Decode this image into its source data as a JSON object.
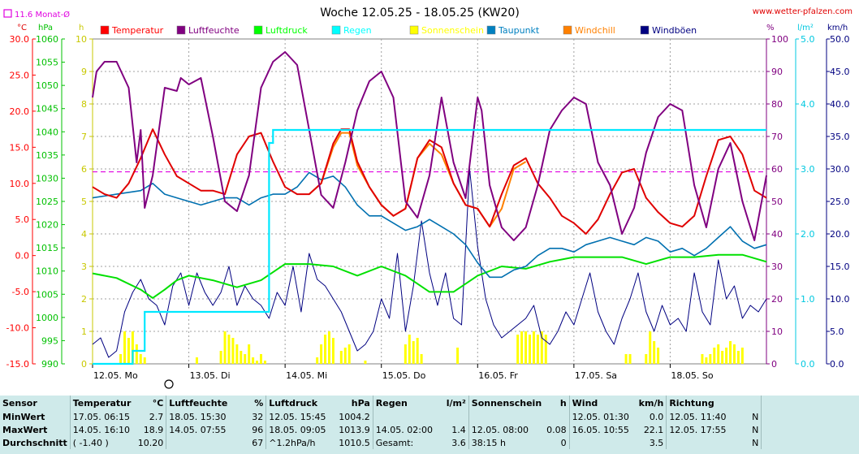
{
  "header": {
    "title": "Woche 12.05.25 - 18.05.25 (KW20)",
    "url": "www.wetter-pfalzen.com",
    "monthavg_label": "11.6 Monat-Ø",
    "unit_celsius": "°C",
    "unit_hpa": "hPa",
    "unit_h": "h",
    "unit_percent": "%",
    "unit_lm2": "l/m²",
    "unit_kmh": "km/h"
  },
  "legend": [
    {
      "label": "Temperatur",
      "color": "#ff0000"
    },
    {
      "label": "Luftfeuchte",
      "color": "#800080"
    },
    {
      "label": "Luftdruck",
      "color": "#00ff00"
    },
    {
      "label": "Regen",
      "color": "#00ffff"
    },
    {
      "label": "Sonnenschein",
      "color": "#ffff00"
    },
    {
      "label": "Taupunkt",
      "color": "#0080c0"
    },
    {
      "label": "Windchill",
      "color": "#ff8000"
    },
    {
      "label": "Windböen",
      "color": "#000080"
    }
  ],
  "colors": {
    "temperature": "#e00000",
    "humidity": "#800080",
    "pressure": "#00e000",
    "rain": "#00e8ff",
    "sunshine": "#ffff00",
    "dewpoint": "#0070b0",
    "windchill": "#ff8000",
    "gusts": "#000080",
    "monthavg": "#e000e0"
  },
  "chart_data": {
    "type": "line",
    "x_start_hours": 0,
    "x_end_hours": 168,
    "day_labels": [
      "12.05. Mo",
      "13.05. Di",
      "14.05. Mi",
      "15.05. Do",
      "16.05. Fr",
      "17.05. Sa",
      "18.05. So"
    ],
    "axes": {
      "temperature": {
        "min": -15,
        "max": 30,
        "ticks": [
          "30.0",
          "25.0",
          "20.0",
          "15.0",
          "10.0",
          "5.0",
          "0.0",
          "-5.0",
          "-10.0",
          "-15.0"
        ]
      },
      "pressure": {
        "min": 990,
        "max": 1060,
        "ticks": [
          "1060",
          "1055",
          "1050",
          "1045",
          "1040",
          "1035",
          "1030",
          "1025",
          "1020",
          "1015",
          "1010",
          "1005",
          "1000",
          "995",
          "990"
        ]
      },
      "sunshine_h": {
        "min": 0,
        "max": 10,
        "ticks": [
          "10",
          "9",
          "8",
          "7",
          "6",
          "5",
          "4",
          "3",
          "2",
          "1",
          "0"
        ]
      },
      "humidity": {
        "min": 0,
        "max": 100,
        "ticks": [
          "100",
          "90",
          "80",
          "70",
          "60",
          "50",
          "40",
          "30",
          "20",
          "10",
          "0"
        ]
      },
      "rain": {
        "min": 0,
        "max": 5,
        "ticks": [
          "5.0",
          "4.0",
          "3.0",
          "2.0",
          "1.0",
          "0.0"
        ]
      },
      "wind": {
        "min": 0,
        "max": 50,
        "ticks": [
          "50.0",
          "45.0",
          "40.0",
          "35.0",
          "30.0",
          "25.0",
          "20.0",
          "15.0",
          "10.0",
          "5.0",
          "0.0"
        ]
      }
    },
    "monthavg_temperature": 11.6,
    "series": [
      {
        "name": "Temperatur",
        "axis": "temperature",
        "x": [
          0,
          3,
          6,
          9,
          12,
          15,
          18,
          21,
          24,
          27,
          30,
          33,
          36,
          39,
          42,
          45,
          48,
          51,
          54,
          57,
          60,
          62,
          64,
          66,
          69,
          72,
          75,
          78,
          81,
          84,
          87,
          90,
          93,
          96,
          99,
          102,
          105,
          108,
          111,
          114,
          117,
          120,
          123,
          126,
          129,
          132,
          135,
          138,
          141,
          144,
          147,
          150,
          153,
          156,
          159,
          162,
          165,
          168
        ],
        "values": [
          9.5,
          8.5,
          8.0,
          10.0,
          13.5,
          17.5,
          14.0,
          11.0,
          10.0,
          9.0,
          9.0,
          8.5,
          14.0,
          16.5,
          17.0,
          13.0,
          9.5,
          8.5,
          8.5,
          10.0,
          15.5,
          17.5,
          17.5,
          13.0,
          9.5,
          7.0,
          5.5,
          6.5,
          13.5,
          16.0,
          15.0,
          10.0,
          7.0,
          6.5,
          4.0,
          8.5,
          12.5,
          13.5,
          10.0,
          8.0,
          5.5,
          4.5,
          3.0,
          5.0,
          8.5,
          11.5,
          12.0,
          8.0,
          6.0,
          4.5,
          4.0,
          5.5,
          11.0,
          16.0,
          16.5,
          14.0,
          9.0,
          8.0
        ]
      },
      {
        "name": "Windchill",
        "axis": "temperature",
        "x": [
          54,
          57,
          60,
          62,
          64,
          66,
          69,
          72,
          75,
          78,
          81,
          84,
          87,
          90,
          93,
          96,
          99,
          102,
          105,
          108
        ],
        "values": [
          8.5,
          10.0,
          15.0,
          17.0,
          17.0,
          12.5,
          9.5,
          7.0,
          5.5,
          6.5,
          13.5,
          15.5,
          14.0,
          10.0,
          7.0,
          6.5,
          4.0,
          6.5,
          12.0,
          13.0
        ]
      },
      {
        "name": "Taupunkt",
        "axis": "temperature",
        "x": [
          0,
          6,
          12,
          15,
          18,
          21,
          24,
          27,
          30,
          33,
          36,
          39,
          42,
          45,
          48,
          51,
          54,
          57,
          60,
          63,
          66,
          69,
          72,
          75,
          78,
          81,
          84,
          87,
          90,
          93,
          96,
          99,
          102,
          105,
          108,
          111,
          114,
          117,
          120,
          123,
          126,
          129,
          132,
          135,
          138,
          141,
          144,
          147,
          150,
          153,
          156,
          159,
          162,
          165,
          168
        ],
        "values": [
          8.0,
          8.5,
          9.0,
          10.0,
          8.5,
          8.0,
          7.5,
          7.0,
          7.5,
          8.0,
          8.0,
          7.0,
          8.0,
          8.5,
          8.5,
          9.5,
          11.5,
          10.5,
          11.0,
          9.5,
          7.0,
          5.5,
          5.5,
          4.5,
          3.5,
          4.0,
          5.0,
          4.0,
          3.0,
          1.5,
          -1.0,
          -3.0,
          -3.0,
          -2.0,
          -1.5,
          0.0,
          1.0,
          1.0,
          0.5,
          1.5,
          2.0,
          2.5,
          2.0,
          1.5,
          2.5,
          2.0,
          0.5,
          1.0,
          0.0,
          1.0,
          2.5,
          4.0,
          2.0,
          1.0,
          1.5
        ]
      },
      {
        "name": "Luftfeuchte",
        "axis": "humidity",
        "x": [
          0,
          1,
          3,
          6,
          9,
          11,
          12,
          13,
          15,
          18,
          21,
          22,
          24,
          27,
          30,
          33,
          36,
          39,
          42,
          45,
          48,
          51,
          54,
          57,
          60,
          63,
          66,
          69,
          72,
          75,
          78,
          81,
          84,
          87,
          90,
          93,
          96,
          97,
          99,
          102,
          105,
          108,
          111,
          114,
          117,
          120,
          123,
          126,
          129,
          132,
          135,
          138,
          141,
          144,
          147,
          150,
          153,
          156,
          159,
          162,
          165,
          168
        ],
        "values": [
          82,
          90,
          93,
          93,
          85,
          62,
          72,
          48,
          58,
          85,
          84,
          88,
          86,
          88,
          70,
          50,
          47,
          58,
          85,
          93,
          96,
          92,
          72,
          52,
          48,
          62,
          78,
          87,
          90,
          82,
          50,
          45,
          58,
          82,
          62,
          51,
          82,
          78,
          55,
          42,
          38,
          42,
          55,
          72,
          78,
          82,
          80,
          62,
          55,
          40,
          48,
          65,
          76,
          80,
          78,
          55,
          42,
          60,
          68,
          50,
          38,
          58
        ]
      },
      {
        "name": "Luftdruck",
        "axis": "pressure",
        "x": [
          0,
          6,
          12,
          15,
          18,
          21,
          24,
          30,
          36,
          42,
          48,
          54,
          60,
          66,
          72,
          78,
          84,
          90,
          96,
          102,
          108,
          114,
          120,
          126,
          132,
          138,
          144,
          150,
          156,
          162,
          168
        ],
        "values": [
          1009.5,
          1008.5,
          1006.0,
          1004.2,
          1006.0,
          1008.0,
          1009.0,
          1008.0,
          1006.5,
          1008.0,
          1011.5,
          1011.5,
          1011.0,
          1009.0,
          1011.0,
          1009.0,
          1005.5,
          1005.5,
          1009.0,
          1011.0,
          1010.5,
          1012.0,
          1013.0,
          1013.0,
          1013.0,
          1011.5,
          1013.0,
          1013.0,
          1013.5,
          1013.5,
          1012.0
        ]
      },
      {
        "name": "Regen",
        "axis": "rain",
        "x": [
          0,
          10,
          12,
          13,
          14,
          15,
          16,
          17,
          18,
          30,
          40,
          42,
          43,
          44,
          45,
          46,
          168
        ],
        "values": [
          0.0,
          0.2,
          0.2,
          0.8,
          0.8,
          0.8,
          0.8,
          0.8,
          0.8,
          0.8,
          0.8,
          0.8,
          0.8,
          3.4,
          3.6,
          3.6,
          3.6
        ]
      }
    ],
    "gusts_x": [
      0,
      2,
      4,
      6,
      8,
      10,
      12,
      14,
      16,
      18,
      20,
      22,
      24,
      26,
      28,
      30,
      32,
      34,
      36,
      38,
      40,
      42,
      44,
      46,
      48,
      50,
      52,
      54,
      56,
      58,
      60,
      62,
      64,
      66,
      68,
      70,
      72,
      74,
      76,
      78,
      80,
      82,
      84,
      86,
      88,
      90,
      92,
      94,
      96,
      98,
      100,
      102,
      104,
      106,
      108,
      110,
      112,
      114,
      116,
      118,
      120,
      122,
      124,
      126,
      128,
      130,
      132,
      134,
      136,
      138,
      140,
      142,
      144,
      146,
      148,
      150,
      152,
      154,
      156,
      158,
      160,
      162,
      164,
      166,
      168
    ],
    "gusts_values": [
      3,
      4,
      1,
      2,
      8,
      11,
      13,
      10,
      9,
      6,
      12,
      14,
      9,
      14,
      11,
      9,
      11,
      15,
      9,
      12,
      10,
      9,
      7,
      11,
      9,
      15,
      8,
      17,
      13,
      12,
      10,
      8,
      5,
      2,
      3,
      5,
      10,
      7,
      17,
      5,
      12,
      22,
      14,
      9,
      14,
      7,
      6,
      30,
      18,
      10,
      6,
      4,
      5,
      6,
      7,
      9,
      4,
      3,
      5,
      8,
      6,
      10,
      14,
      8,
      5,
      3,
      7,
      10,
      14,
      8,
      5,
      9,
      6,
      7,
      5,
      14,
      8,
      6,
      16,
      10,
      12,
      7,
      9,
      8,
      10
    ],
    "sunshine_x": [
      7,
      8,
      9,
      10,
      11,
      12,
      13,
      26,
      32,
      33,
      34,
      35,
      36,
      37,
      38,
      39,
      40,
      41,
      42,
      43,
      56,
      57,
      58,
      59,
      60,
      62,
      63,
      64,
      68,
      78,
      79,
      80,
      81,
      82,
      91,
      106,
      107,
      108,
      109,
      110,
      111,
      112,
      113,
      133,
      134,
      138,
      139,
      140,
      141,
      152,
      153,
      154,
      155,
      156,
      157,
      158,
      159,
      160,
      161,
      162
    ],
    "sunshine_values": [
      0.3,
      1.0,
      0.8,
      1.0,
      0.6,
      0.3,
      0.2,
      0.2,
      0.4,
      1.0,
      0.9,
      0.8,
      0.6,
      0.4,
      0.3,
      0.6,
      0.2,
      0.1,
      0.3,
      0.1,
      0.2,
      0.6,
      0.9,
      1.0,
      0.8,
      0.4,
      0.5,
      0.6,
      0.1,
      0.6,
      0.9,
      0.7,
      0.8,
      0.3,
      0.5,
      0.9,
      1.0,
      1.0,
      0.9,
      1.0,
      0.9,
      1.0,
      0.9,
      0.3,
      0.3,
      0.3,
      1.0,
      0.7,
      0.5,
      0.3,
      0.2,
      0.3,
      0.5,
      0.6,
      0.4,
      0.5,
      0.7,
      0.6,
      0.4,
      0.5
    ]
  },
  "stats": {
    "headers": {
      "sensor": "Sensor",
      "temp": "Temperatur",
      "temp_unit": "°C",
      "hum": "Luftfeuchte",
      "hum_unit": "%",
      "press": "Luftdruck",
      "press_unit": "hPa",
      "rain": "Regen",
      "rain_unit": "l/m²",
      "sun": "Sonnenschein",
      "sun_unit": "h",
      "wind": "Wind",
      "wind_unit": "km/h",
      "dir": "Richtung"
    },
    "rows": [
      {
        "label": "MinWert",
        "temp_time": "17.05. 06:15",
        "temp_val": "2.7",
        "hum_time": "18.05. 15:30",
        "hum_val": "32",
        "press_time": "12.05. 15:45",
        "press_val": "1004.2",
        "rain_time": "",
        "rain_val": "",
        "sun_time": "",
        "sun_val": "",
        "wind_time": "12.05. 01:30",
        "wind_val": "0.0",
        "dir_time": "12.05. 11:40",
        "dir_val": "N"
      },
      {
        "label": "MaxWert",
        "temp_time": "14.05. 16:10",
        "temp_val": "18.9",
        "hum_time": "14.05. 07:55",
        "hum_val": "96",
        "press_time": "18.05. 09:05",
        "press_val": "1013.9",
        "rain_time": "14.05. 02:00",
        "rain_val": "1.4",
        "sun_time": "12.05. 08:00",
        "sun_val": "0.08",
        "wind_time": "16.05. 10:55",
        "wind_val": "22.1",
        "dir_time": "12.05. 17:55",
        "dir_val": "N"
      },
      {
        "label": "Durchschnitt",
        "temp_time": "( -1.40 )",
        "temp_val": "10.20",
        "hum_time": "",
        "hum_val": "67",
        "press_time": "^1.2hPa/h",
        "press_val": "1010.5",
        "rain_time": "Gesamt:",
        "rain_val": "3.6",
        "sun_time": "38:15 h",
        "sun_val": "0",
        "wind_time": "",
        "wind_val": "3.5",
        "dir_time": "",
        "dir_val": "N"
      }
    ]
  }
}
